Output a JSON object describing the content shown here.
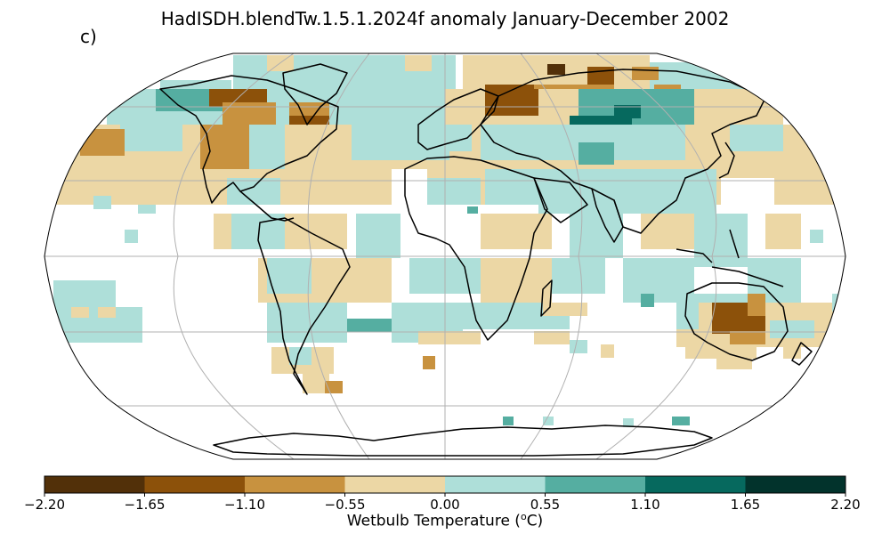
{
  "title": "HadISDH.blendTw.1.5.1.2024f anomaly January-December 2002",
  "panel_label": "c)",
  "colorbar": {
    "label_prefix": "Wetbulb Temperature (",
    "label_sup": "o",
    "label_suffix": "C)",
    "ticks": [
      "−2.20",
      "−1.65",
      "−1.10",
      "−0.55",
      "0.00",
      "0.55",
      "1.10",
      "1.65",
      "2.20"
    ],
    "colors": [
      "#523009",
      "#8c510a",
      "#c8923f",
      "#ecd7a5",
      "#aedfd9",
      "#55aea1",
      "#06695e",
      "#02332c"
    ]
  },
  "legend": {
    "bins": [
      {
        "min": -2.2,
        "max": -1.65,
        "color": "#523009"
      },
      {
        "min": -1.65,
        "max": -1.1,
        "color": "#8c510a"
      },
      {
        "min": -1.1,
        "max": -0.55,
        "color": "#c8923f"
      },
      {
        "min": -0.55,
        "max": 0.0,
        "color": "#ecd7a5"
      },
      {
        "min": 0.0,
        "max": 0.55,
        "color": "#aedfd9"
      },
      {
        "min": 0.55,
        "max": 1.1,
        "color": "#55aea1"
      },
      {
        "min": 1.1,
        "max": 1.65,
        "color": "#06695e"
      },
      {
        "min": 1.65,
        "max": 2.2,
        "color": "#02332c"
      }
    ]
  },
  "map": {
    "projection": "Robinson",
    "gridlines": true,
    "anomaly_cells": [
      {
        "region": "Canada north",
        "level": "ecd7a5"
      },
      {
        "region": "Alaska",
        "level": "c8923f"
      },
      {
        "region": "Central Canada",
        "level": "8c510a"
      },
      {
        "region": "Western USA",
        "level": "c8923f"
      },
      {
        "region": "Greenland south",
        "level": "8c510a"
      },
      {
        "region": "Russia north",
        "level": "8c510a"
      },
      {
        "region": "Central Asia",
        "level": "06695e"
      },
      {
        "region": "Mongolia",
        "level": "55aea1"
      },
      {
        "region": "Eastern Asia",
        "level": "ecd7a5"
      },
      {
        "region": "Australia east",
        "level": "8c510a"
      },
      {
        "region": "South America east",
        "level": "aedfd9"
      },
      {
        "region": "South Atlantic",
        "level": "55aea1"
      }
    ]
  }
}
